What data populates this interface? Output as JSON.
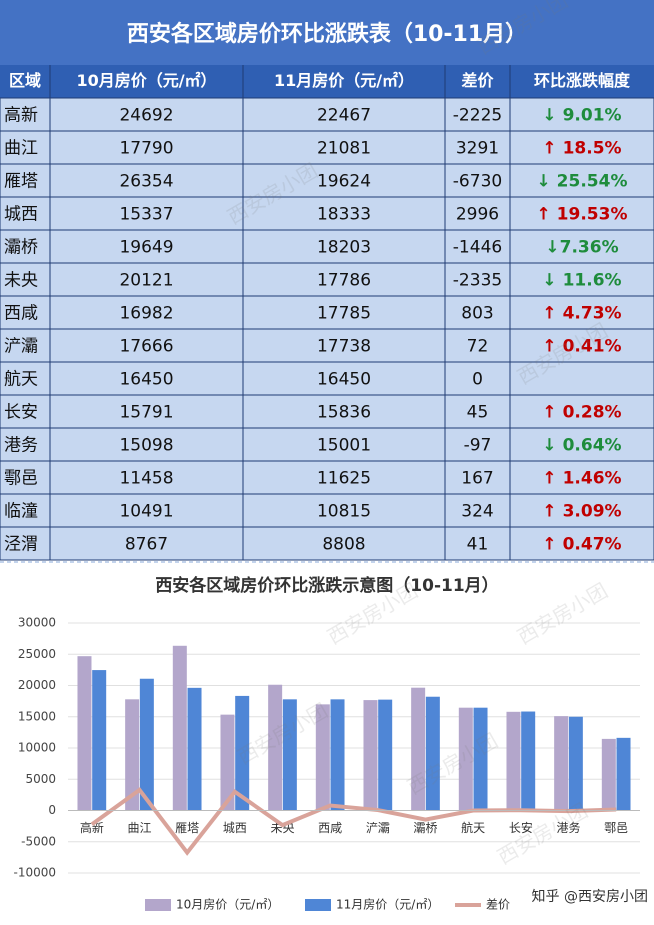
{
  "table": {
    "title": "西安各区域房价环比涨跌表（10-11月）",
    "header": [
      "区域",
      "10月房价（元/㎡）",
      "11月房价（元/㎡）",
      "差价",
      "环比涨跌幅度"
    ],
    "rows": [
      [
        "高新",
        24692,
        22467,
        -2225,
        "↓ 9.01%"
      ],
      [
        "曲江",
        17790,
        21081,
        3291,
        "↑ 18.5%"
      ],
      [
        "雁塔",
        26354,
        19624,
        -6730,
        "↓ 25.54%"
      ],
      [
        "城西",
        15337,
        18333,
        2996,
        "↑ 19.53%"
      ],
      [
        "灞桥",
        19649,
        18203,
        -1446,
        "↓7.36%"
      ],
      [
        "未央",
        20121,
        17786,
        -2335,
        "↓ 11.6%"
      ],
      [
        "西咸",
        16982,
        17785,
        803,
        "↑ 4.73%"
      ],
      [
        "浐灞",
        17666,
        17738,
        72,
        "↑ 0.41%"
      ],
      [
        "航天",
        16450,
        16450,
        0,
        null
      ],
      [
        "长安",
        15791,
        15836,
        45,
        "↑ 0.28%"
      ],
      [
        "港务",
        15098,
        15001,
        -97,
        "↓ 0.64%"
      ],
      [
        "鄠邑",
        11458,
        11625,
        167,
        "↑ 1.46%"
      ],
      [
        "临潼",
        10491,
        10815,
        324,
        "↑ 3.09%"
      ],
      [
        "泾渭",
        8767,
        8808,
        41,
        "↑ 0.47%"
      ]
    ],
    "up_color": "#c00000",
    "down_color": "#1e8c3c"
  },
  "watermark": "西安房小团",
  "credit": "知乎 @西安房小团",
  "chart_data": {
    "type": "bar",
    "title": "西安各区域房价环比涨跌示意图（10-11月）",
    "categories": [
      "高新",
      "曲江",
      "雁塔",
      "城西",
      "未央",
      "西咸",
      "浐灞",
      "灞桥",
      "航天",
      "长安",
      "港务",
      "鄠邑"
    ],
    "series": [
      {
        "name": "10月房价（元/㎡）",
        "color": "#b3a6cb",
        "values": [
          24692,
          17790,
          26354,
          15337,
          20121,
          16982,
          17666,
          19649,
          16450,
          15791,
          15098,
          11458
        ]
      },
      {
        "name": "11月房价（元/㎡）",
        "color": "#4f86d6",
        "values": [
          22467,
          21081,
          19624,
          18333,
          17786,
          17785,
          17738,
          18203,
          16450,
          15836,
          15001,
          11625
        ]
      },
      {
        "name": "差价",
        "type": "line",
        "color": "#d9a39a",
        "values": [
          -2225,
          3291,
          -6730,
          2996,
          -2335,
          803,
          72,
          -1446,
          0,
          45,
          -97,
          167
        ]
      }
    ],
    "ylim": [
      -10000,
      30000
    ],
    "yticks": [
      -10000,
      -5000,
      0,
      5000,
      10000,
      15000,
      20000,
      25000,
      30000
    ],
    "grid": true,
    "legend": "bottom"
  }
}
